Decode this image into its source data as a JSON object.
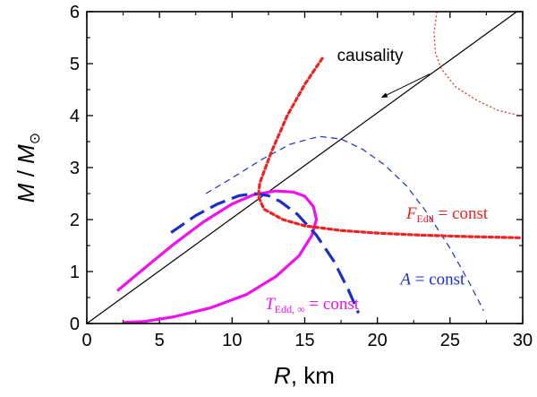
{
  "chart_data": {
    "type": "line",
    "title": "",
    "xlim": [
      0,
      30
    ],
    "ylim": [
      0,
      6
    ],
    "xticks": [
      0,
      5,
      10,
      15,
      20,
      25,
      30
    ],
    "yticks": [
      0,
      1,
      2,
      3,
      4,
      5,
      6
    ],
    "xticks_minor": [
      2.5,
      7.5,
      12.5,
      17.5,
      22.5,
      27.5
    ],
    "yticks_minor": [
      0.5,
      1.5,
      2.5,
      3.5,
      4.5,
      5.5
    ],
    "xlabel": {
      "main": "R",
      "rest": ", km"
    },
    "ylabel": {
      "main": "M",
      "sep": " / ",
      "sub_main": "M",
      "sub_symbol": "⊙"
    },
    "grid": false,
    "series": [
      {
        "name": "causality",
        "color": "#000000",
        "dash": "solid",
        "weight": "thin",
        "points": [
          [
            0,
            0
          ],
          [
            29.6,
            6.0
          ]
        ]
      },
      {
        "name": "T_Edd,inf = const",
        "color": "#ee11ee",
        "dash": "solid",
        "weight": "thick",
        "points": [
          [
            2.1,
            0.63
          ],
          [
            4.0,
            1.07
          ],
          [
            6.0,
            1.53
          ],
          [
            8.0,
            1.95
          ],
          [
            10.0,
            2.3
          ],
          [
            11.5,
            2.48
          ],
          [
            13.0,
            2.55
          ],
          [
            14.2,
            2.53
          ],
          [
            15.0,
            2.45
          ],
          [
            15.6,
            2.25
          ],
          [
            15.8,
            2.0
          ],
          [
            15.5,
            1.7
          ],
          [
            14.6,
            1.3
          ],
          [
            13.0,
            0.9
          ],
          [
            11.0,
            0.56
          ],
          [
            8.5,
            0.3
          ],
          [
            6.0,
            0.13
          ],
          [
            4.0,
            0.04
          ],
          [
            2.5,
            0.02
          ]
        ]
      },
      {
        "name": "A = const (thick)",
        "color": "#1d2ec8",
        "dash": "long",
        "weight": "thick",
        "points": [
          [
            5.8,
            1.75
          ],
          [
            7.5,
            2.08
          ],
          [
            9.0,
            2.3
          ],
          [
            10.5,
            2.46
          ],
          [
            11.5,
            2.5
          ],
          [
            12.5,
            2.46
          ],
          [
            13.3,
            2.35
          ],
          [
            14.5,
            2.1
          ],
          [
            15.8,
            1.7
          ],
          [
            17.0,
            1.2
          ],
          [
            18.0,
            0.65
          ],
          [
            18.7,
            0.2
          ]
        ]
      },
      {
        "name": "A = const (thin)",
        "color": "#1d2ec8",
        "dash": "short",
        "weight": "thin",
        "points": [
          [
            8.2,
            2.5
          ],
          [
            10.0,
            2.8
          ],
          [
            12.0,
            3.15
          ],
          [
            14.0,
            3.45
          ],
          [
            16.0,
            3.6
          ],
          [
            17.5,
            3.55
          ],
          [
            19.0,
            3.35
          ],
          [
            20.5,
            3.05
          ],
          [
            22.0,
            2.65
          ],
          [
            23.5,
            2.1
          ],
          [
            25.0,
            1.45
          ],
          [
            26.3,
            0.8
          ],
          [
            27.3,
            0.25
          ]
        ]
      },
      {
        "name": "F_Edd = const (thick)",
        "color": "#ee2222",
        "dash": "dot",
        "weight": "thick",
        "points": [
          [
            16.2,
            5.1
          ],
          [
            15.0,
            4.6
          ],
          [
            13.8,
            4.0
          ],
          [
            12.7,
            3.3
          ],
          [
            11.9,
            2.7
          ],
          [
            11.8,
            2.45
          ],
          [
            12.2,
            2.2
          ],
          [
            13.5,
            2.0
          ],
          [
            15.0,
            1.88
          ],
          [
            17.5,
            1.79
          ],
          [
            20.0,
            1.74
          ],
          [
            23.0,
            1.7
          ],
          [
            26.5,
            1.67
          ],
          [
            29.8,
            1.65
          ]
        ]
      },
      {
        "name": "F_Edd = const (thin)",
        "color": "#ee2222",
        "dash": "fine",
        "weight": "thin",
        "points": [
          [
            24.1,
            6.0
          ],
          [
            23.9,
            5.6
          ],
          [
            24.0,
            5.2
          ],
          [
            24.4,
            4.9
          ],
          [
            25.4,
            4.55
          ],
          [
            26.8,
            4.3
          ],
          [
            28.3,
            4.1
          ],
          [
            29.8,
            4.0
          ]
        ]
      }
    ],
    "annotations": {
      "causality": {
        "text": "causality",
        "color": "#000000",
        "at": [
          19.5,
          5.05
        ]
      },
      "t_edd": {
        "main": "T",
        "sub": "Edd, ∞",
        "rest": " = const",
        "color": "#ee11ee",
        "at": [
          15.5,
          0.28
        ]
      },
      "a_const": {
        "main": "A",
        "rest": " = const",
        "color": "#1d2ec8",
        "at": [
          23.8,
          0.75
        ]
      },
      "f_edd": {
        "main": "F",
        "sub": "Edd",
        "rest": " = const",
        "color": "#ee2222",
        "at": [
          24.8,
          2.02
        ]
      }
    },
    "arrow": {
      "from": [
        23.6,
        4.8
      ],
      "to": [
        20.3,
        4.35
      ]
    }
  }
}
